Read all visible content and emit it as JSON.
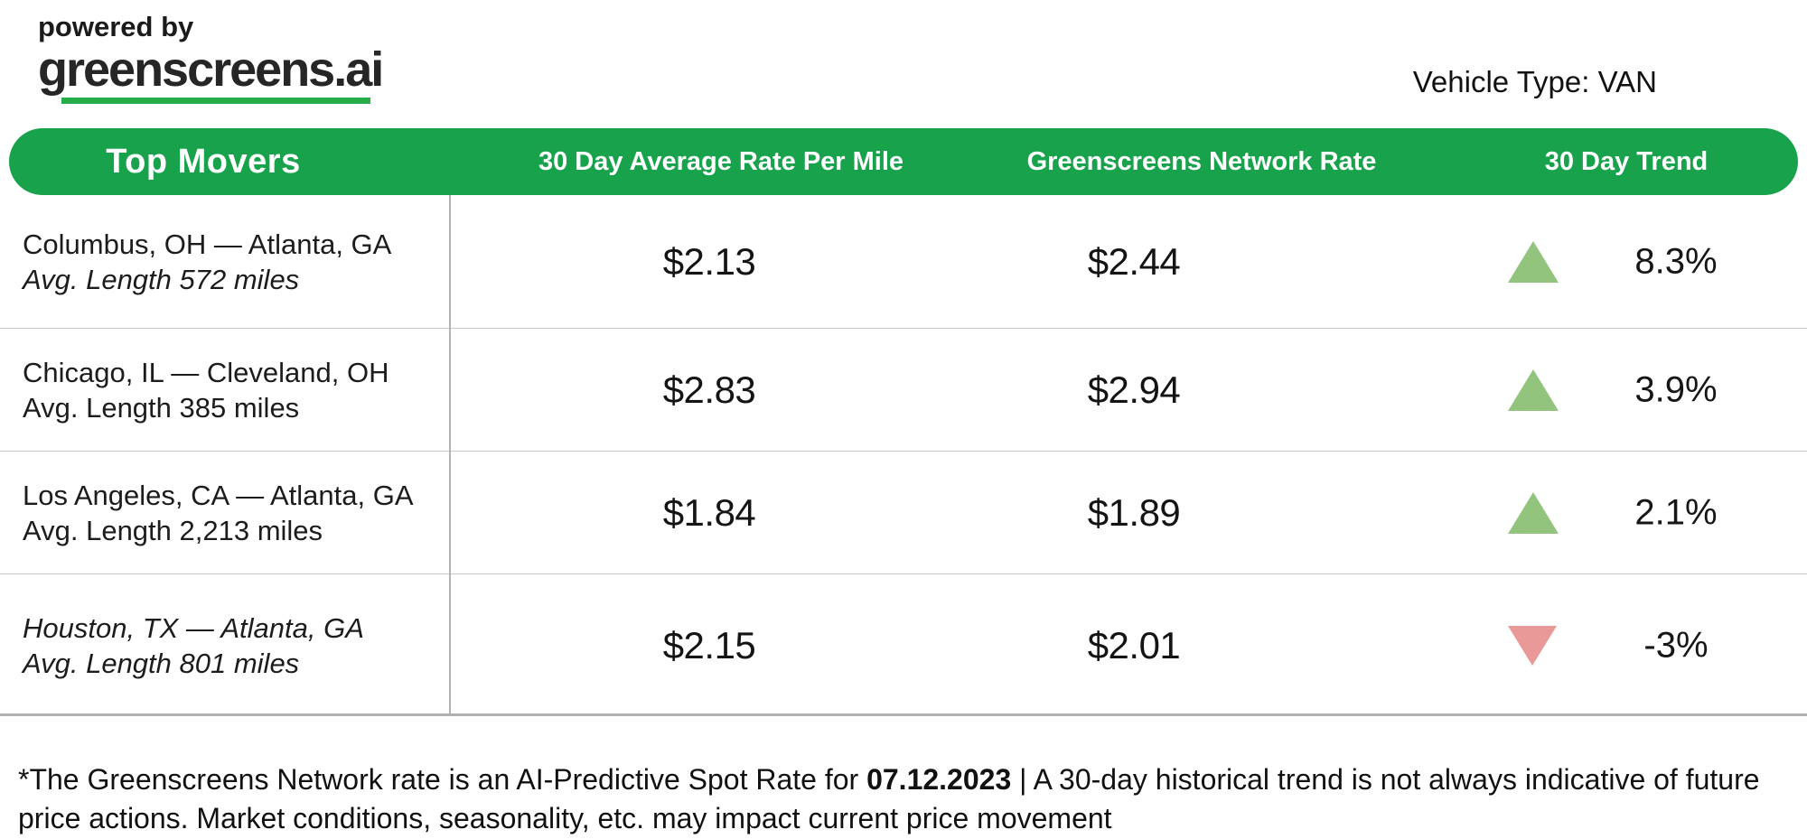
{
  "brand": {
    "powered_by": "powered by",
    "name": "greenscreens.ai"
  },
  "meta": {
    "vehicle_type": "Vehicle Type: VAN"
  },
  "table": {
    "header": {
      "col_movers": "Top Movers",
      "col_avg_rate": "30 Day Average Rate Per Mile",
      "col_network_rate": "Greenscreens Network Rate",
      "col_trend": "30 Day Trend"
    },
    "rows": [
      {
        "route": "Columbus, OH — Atlanta, GA",
        "route_italic": false,
        "avg_length": "Avg. Length 572 miles",
        "avg_length_italic": true,
        "avg_rate": "$2.13",
        "network_rate": "$2.44",
        "trend_direction": "up",
        "trend_value": "8.3%"
      },
      {
        "route": "Chicago, IL — Cleveland, OH",
        "route_italic": false,
        "avg_length": "Avg. Length 385 miles",
        "avg_length_italic": false,
        "avg_rate": "$2.83",
        "network_rate": "$2.94",
        "trend_direction": "up",
        "trend_value": "3.9%"
      },
      {
        "route": "Los Angeles, CA — Atlanta, GA",
        "route_italic": false,
        "avg_length": "Avg. Length 2,213 miles",
        "avg_length_italic": false,
        "avg_rate": "$1.84",
        "network_rate": "$1.89",
        "trend_direction": "up",
        "trend_value": "2.1%"
      },
      {
        "route": "Houston, TX — Atlanta, GA",
        "route_italic": true,
        "avg_length": "Avg. Length 801 miles",
        "avg_length_italic": true,
        "avg_rate": "$2.15",
        "network_rate": "$2.01",
        "trend_direction": "down",
        "trend_value": "-3%"
      }
    ]
  },
  "footer": {
    "prefix": "*The Greenscreens Network rate is an AI-Predictive Spot Rate for ",
    "date": "07.12.2023",
    "suffix": " | A 30-day historical trend is not always indicative of future price actions. Market conditions, seasonality, etc. may impact current price movement"
  },
  "colors": {
    "header_green": "#17A24B",
    "underline_green": "#27AE4A",
    "trend_up": "#93C47D",
    "trend_down": "#EA9999"
  }
}
